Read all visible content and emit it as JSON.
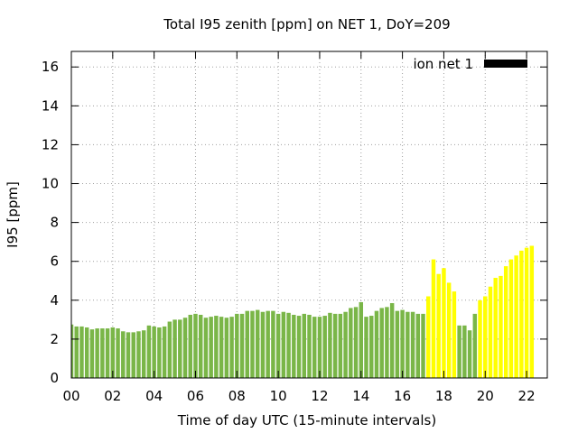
{
  "chart_data": {
    "type": "bar",
    "title": "Total I95 zenith [ppm] on NET 1, DoY=209",
    "xlabel": "Time of day UTC (15-minute intervals)",
    "ylabel": "I95 [ppm]",
    "xlim": [
      0,
      23
    ],
    "ylim": [
      0,
      16.8
    ],
    "x_ticks": [
      {
        "value": 0,
        "label": "00"
      },
      {
        "value": 2,
        "label": "02"
      },
      {
        "value": 4,
        "label": "04"
      },
      {
        "value": 6,
        "label": "06"
      },
      {
        "value": 8,
        "label": "08"
      },
      {
        "value": 10,
        "label": "10"
      },
      {
        "value": 12,
        "label": "12"
      },
      {
        "value": 14,
        "label": "14"
      },
      {
        "value": 16,
        "label": "16"
      },
      {
        "value": 18,
        "label": "18"
      },
      {
        "value": 20,
        "label": "20"
      },
      {
        "value": 22,
        "label": "22"
      }
    ],
    "y_ticks": [
      {
        "value": 0,
        "label": "0"
      },
      {
        "value": 2,
        "label": "2"
      },
      {
        "value": 4,
        "label": "4"
      },
      {
        "value": 6,
        "label": "6"
      },
      {
        "value": 8,
        "label": "8"
      },
      {
        "value": 10,
        "label": "10"
      },
      {
        "value": 12,
        "label": "12"
      },
      {
        "value": 14,
        "label": "14"
      },
      {
        "value": 16,
        "label": "16"
      }
    ],
    "grid": true,
    "legend": {
      "label": "ion net 1",
      "color": "#000000",
      "placement": "top-right"
    },
    "interval_hours": 0.25,
    "values": [
      2.75,
      2.65,
      2.65,
      2.6,
      2.5,
      2.55,
      2.55,
      2.55,
      2.6,
      2.55,
      2.4,
      2.35,
      2.35,
      2.4,
      2.45,
      2.7,
      2.65,
      2.6,
      2.65,
      2.9,
      3.0,
      3.0,
      3.1,
      3.25,
      3.3,
      3.25,
      3.1,
      3.15,
      3.2,
      3.15,
      3.1,
      3.15,
      3.3,
      3.3,
      3.45,
      3.45,
      3.5,
      3.4,
      3.45,
      3.45,
      3.3,
      3.4,
      3.35,
      3.25,
      3.2,
      3.3,
      3.25,
      3.15,
      3.15,
      3.2,
      3.35,
      3.3,
      3.3,
      3.4,
      3.6,
      3.65,
      3.9,
      3.15,
      3.2,
      3.45,
      3.6,
      3.65,
      3.85,
      3.45,
      3.5,
      3.4,
      3.4,
      3.3,
      3.3,
      4.2,
      6.1,
      5.35,
      5.65,
      4.9,
      4.45,
      2.7,
      2.7,
      2.45,
      3.3,
      4.0,
      4.2,
      4.7,
      5.15,
      5.25,
      5.75,
      6.1,
      6.3,
      6.55,
      6.7,
      6.8
    ],
    "colors": {
      "normal": "#7ab648",
      "elevated": "#ffff00"
    },
    "color_runs": [
      {
        "from": 0,
        "to": 68,
        "color": "normal"
      },
      {
        "from": 69,
        "to": 74,
        "color": "elevated"
      },
      {
        "from": 75,
        "to": 78,
        "color": "normal"
      },
      {
        "from": 79,
        "to": 89,
        "color": "elevated"
      }
    ]
  }
}
